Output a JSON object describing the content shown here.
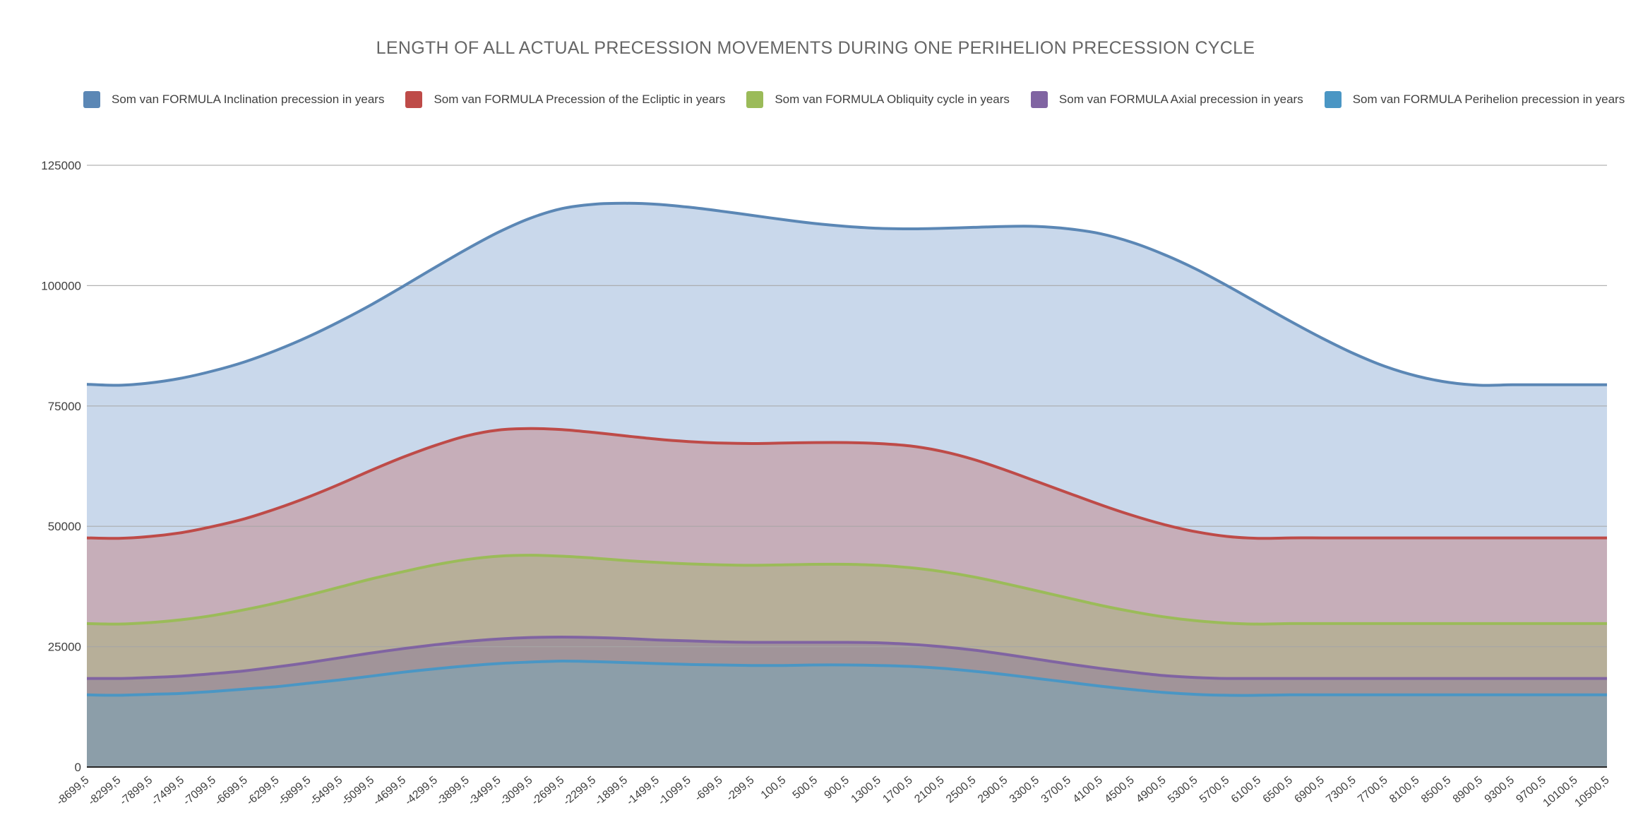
{
  "chart_data": {
    "type": "area",
    "title": "LENGTH OF ALL ACTUAL PRECESSION MOVEMENTS DURING ONE PERIHELION PRECESSION CYCLE",
    "xlabel": "",
    "ylabel": "",
    "ylim": [
      0,
      125000
    ],
    "yticks": [
      "0",
      "25000",
      "50000",
      "75000",
      "100000",
      "125000"
    ],
    "grid": true,
    "legend_position": "top",
    "categories": [
      "-8699,5",
      "-8299,5",
      "-7899,5",
      "-7499,5",
      "-7099,5",
      "-6699,5",
      "-6299,5",
      "-5899,5",
      "-5499,5",
      "-5099,5",
      "-4699,5",
      "-4299,5",
      "-3899,5",
      "-3499,5",
      "-3099,5",
      "-2699,5",
      "-2299,5",
      "-1899,5",
      "-1499,5",
      "-1099,5",
      "-699,5",
      "-299,5",
      "100,5",
      "500,5",
      "900,5",
      "1300,5",
      "1700,5",
      "2100,5",
      "2500,5",
      "2900,5",
      "3300,5",
      "3700,5",
      "4100,5",
      "4500,5",
      "4900,5",
      "5300,5",
      "5700,5",
      "6100,5",
      "6500,5",
      "6900,5",
      "7300,5",
      "7700,5",
      "8100,5",
      "8500,5",
      "8900,5",
      "9300,5",
      "9700,5",
      "10100,5",
      "10500,5"
    ],
    "series": [
      {
        "name": "Som van FORMULA Inclination precession in years",
        "color": "#5b87b5",
        "fill": "#c9d8eb",
        "values": [
          79500,
          79300,
          79800,
          80800,
          82300,
          84200,
          86600,
          89400,
          92600,
          96100,
          99900,
          103800,
          107600,
          111100,
          114000,
          116000,
          116900,
          117100,
          116900,
          116300,
          115500,
          114600,
          113700,
          112900,
          112300,
          111900,
          111800,
          111900,
          112100,
          112300,
          112300,
          111800,
          110800,
          109000,
          106500,
          103500,
          100000,
          96300,
          92600,
          89100,
          85900,
          83200,
          81200,
          79900,
          79300,
          79400,
          79400,
          79400,
          79400
        ]
      },
      {
        "name": "Som van FORMULA Precession of the Ecliptic in years",
        "color": "#be4b48",
        "fill": "#c6aeb9",
        "values": [
          47600,
          47500,
          47900,
          48700,
          50000,
          51600,
          53700,
          56100,
          58800,
          61700,
          64400,
          66800,
          68800,
          70000,
          70300,
          70100,
          69500,
          68800,
          68100,
          67600,
          67300,
          67200,
          67300,
          67400,
          67400,
          67200,
          66700,
          65600,
          63900,
          61700,
          59300,
          56900,
          54500,
          52300,
          50400,
          48900,
          47900,
          47500,
          47600,
          47600,
          47600,
          47600,
          47600,
          47600,
          47600,
          47600,
          47600,
          47600,
          47600
        ]
      },
      {
        "name": "Som van FORMULA Obliquity cycle in years",
        "color": "#9bbb59",
        "fill": "#b7af99",
        "values": [
          29800,
          29700,
          30000,
          30600,
          31500,
          32700,
          34100,
          35700,
          37400,
          39100,
          40600,
          42000,
          43100,
          43800,
          44000,
          43800,
          43400,
          42900,
          42500,
          42200,
          42000,
          41900,
          42000,
          42100,
          42100,
          41900,
          41400,
          40600,
          39500,
          38100,
          36600,
          35100,
          33600,
          32300,
          31200,
          30400,
          29900,
          29700,
          29800,
          29800,
          29800,
          29800,
          29800,
          29800,
          29800,
          29800,
          29800,
          29800,
          29800
        ]
      },
      {
        "name": "Som van FORMULA Axial precession in years",
        "color": "#8064a2",
        "fill": "#a19499",
        "values": [
          18400,
          18400,
          18600,
          18900,
          19400,
          20000,
          20800,
          21700,
          22700,
          23700,
          24600,
          25400,
          26100,
          26600,
          26900,
          27000,
          26900,
          26700,
          26400,
          26200,
          26000,
          25900,
          25900,
          25900,
          25900,
          25800,
          25500,
          25000,
          24300,
          23400,
          22400,
          21400,
          20500,
          19700,
          19000,
          18600,
          18400,
          18400,
          18400,
          18400,
          18400,
          18400,
          18400,
          18400,
          18400,
          18400,
          18400,
          18400,
          18400
        ]
      },
      {
        "name": "Som van FORMULA Perihelion precession in years",
        "color": "#4a96c4",
        "fill": "#8c9ea9",
        "values": [
          15000,
          14900,
          15100,
          15300,
          15700,
          16200,
          16700,
          17400,
          18100,
          18900,
          19700,
          20400,
          21000,
          21500,
          21800,
          22000,
          21900,
          21700,
          21500,
          21300,
          21200,
          21100,
          21100,
          21200,
          21200,
          21100,
          20900,
          20500,
          19900,
          19200,
          18400,
          17600,
          16800,
          16100,
          15500,
          15100,
          14900,
          14900,
          15000,
          15000,
          15000,
          15000,
          15000,
          15000,
          15000,
          15000,
          15000,
          15000,
          15000
        ]
      }
    ]
  }
}
